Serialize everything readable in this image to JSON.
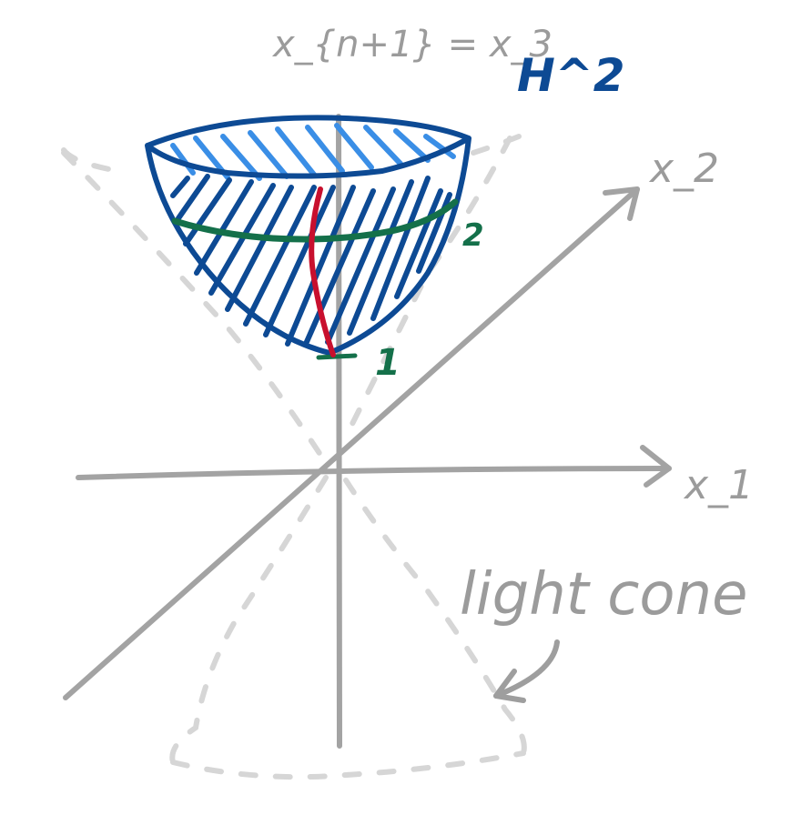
{
  "labels": {
    "axis_vertical": "x_{n+1} = x_3",
    "axis_x1": "x_1",
    "axis_x2": "x_2",
    "surface": "H^2",
    "light_cone": "light cone",
    "level_upper": "2",
    "level_lower": "1"
  },
  "colors": {
    "axes": "#9e9e9e",
    "cone_dashes": "#d3d3d3",
    "surface_outline": "#0d4a94",
    "surface_hatch_dark": "#0d4a94",
    "surface_hatch_light": "#3a8ee6",
    "geodesic": "#c8102e",
    "level_curve": "#14704a"
  }
}
